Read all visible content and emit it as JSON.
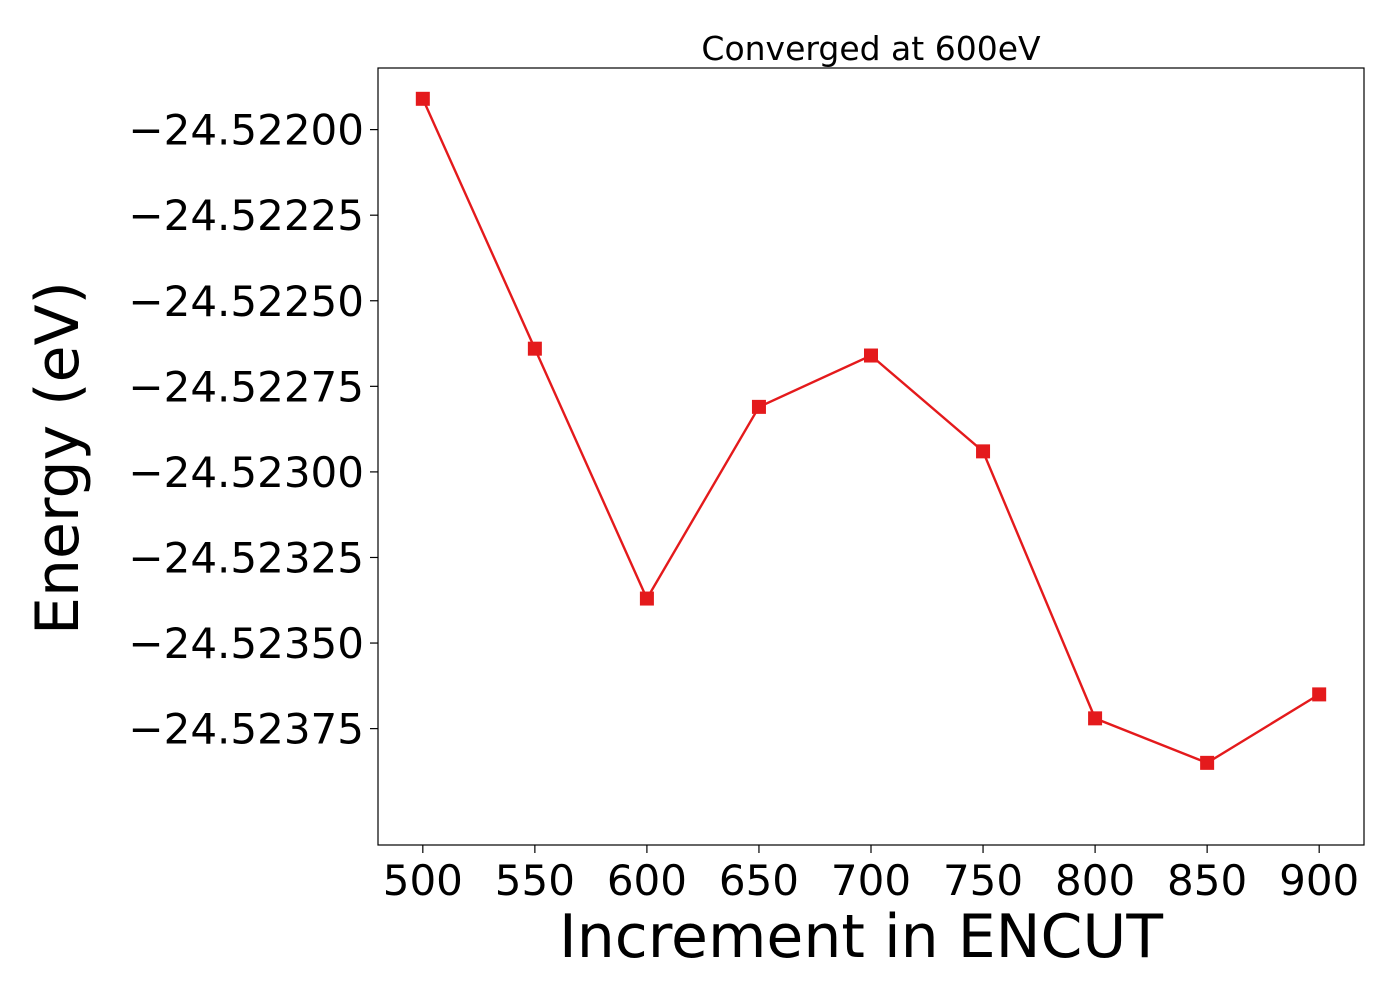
{
  "chart_data": {
    "type": "line",
    "title": "Converged at 600eV",
    "xlabel": "Increment in ENCUT",
    "ylabel": "Energy (eV)",
    "x": [
      500,
      550,
      600,
      650,
      700,
      750,
      800,
      850,
      900
    ],
    "series": [
      {
        "values": [
          -24.52191,
          -24.52264,
          -24.52337,
          -24.52281,
          -24.52266,
          -24.52294,
          -24.52372,
          -24.52385,
          -24.52365
        ],
        "color": "#e41a1c",
        "marker": "square"
      }
    ],
    "xticks": [
      500,
      550,
      600,
      650,
      700,
      750,
      800,
      850,
      900
    ],
    "xtick_labels": [
      "500",
      "550",
      "600",
      "650",
      "700",
      "750",
      "800",
      "850",
      "900"
    ],
    "yticks": [
      -24.522,
      -24.52225,
      -24.5225,
      -24.52275,
      -24.523,
      -24.52325,
      -24.5235,
      -24.52375
    ],
    "ytick_labels": [
      "−24.52200",
      "−24.52225",
      "−24.52250",
      "−24.52275",
      "−24.52300",
      "−24.52325",
      "−24.52350",
      "−24.52375"
    ],
    "xlim": [
      480,
      920
    ],
    "ylim": [
      -24.52409,
      -24.52182
    ],
    "grid": false,
    "legend": false
  }
}
